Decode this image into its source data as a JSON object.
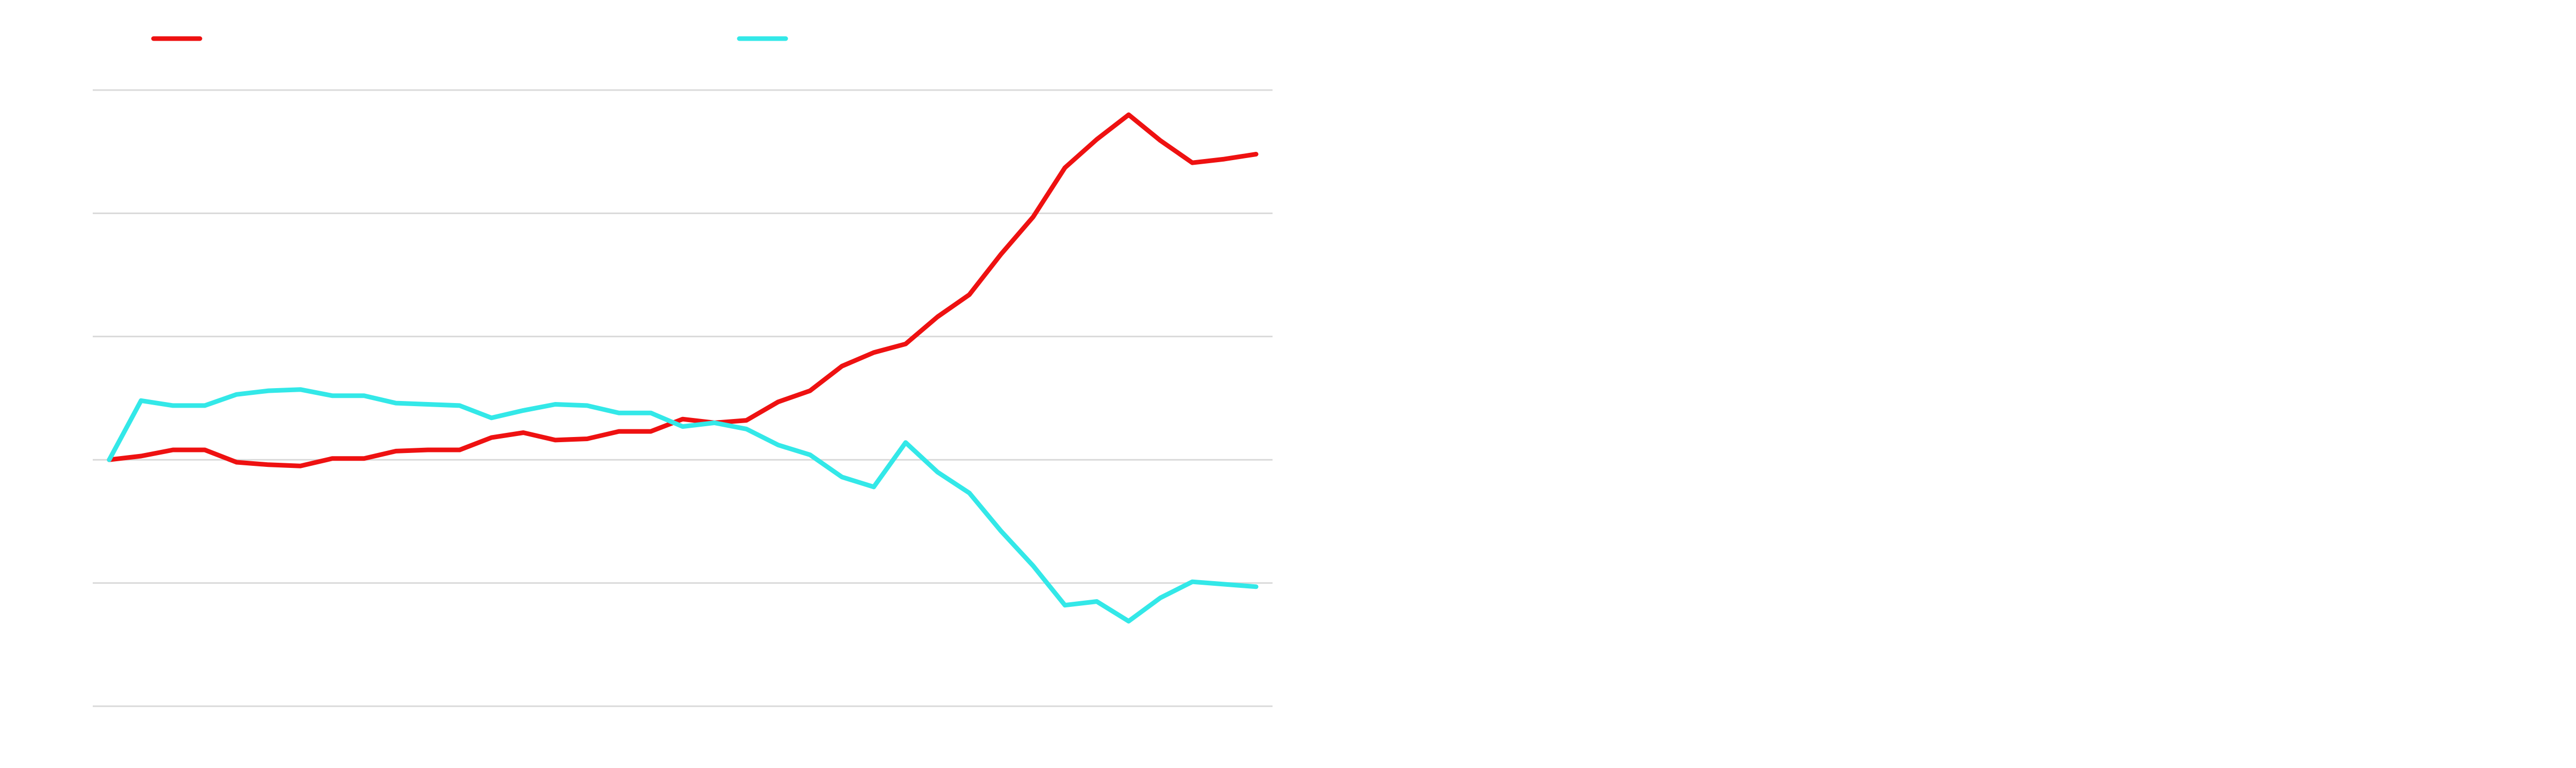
{
  "chart_data": {
    "type": "line",
    "title": "",
    "xlabel": "",
    "ylabel": "",
    "x": [
      0,
      1,
      2,
      3,
      4,
      5,
      6,
      7,
      8,
      9,
      10,
      11,
      12,
      13,
      14,
      15,
      16,
      17,
      18,
      19,
      20,
      21,
      22,
      23,
      24,
      25,
      26,
      27,
      28,
      29,
      30,
      31,
      32,
      33,
      34,
      35,
      36
    ],
    "ylim": [
      -2,
      3
    ],
    "grid": true,
    "legend": "top",
    "series": [
      {
        "color": "#ee1111",
        "values": [
          0.0,
          0.03,
          0.08,
          0.08,
          -0.02,
          -0.04,
          -0.05,
          0.01,
          0.01,
          0.07,
          0.08,
          0.08,
          0.18,
          0.22,
          0.16,
          0.17,
          0.23,
          0.23,
          0.33,
          0.3,
          0.32,
          0.47,
          0.56,
          0.76,
          0.87,
          0.94,
          1.16,
          1.34,
          1.67,
          1.97,
          2.37,
          2.6,
          2.8,
          2.59,
          2.41,
          2.44,
          2.48
        ]
      },
      {
        "color": "#33e8e8",
        "values": [
          0.0,
          0.48,
          0.44,
          0.44,
          0.53,
          0.56,
          0.57,
          0.52,
          0.52,
          0.46,
          0.45,
          0.44,
          0.34,
          0.4,
          0.45,
          0.44,
          0.38,
          0.38,
          0.27,
          0.3,
          0.25,
          0.12,
          0.04,
          -0.14,
          -0.22,
          0.14,
          -0.1,
          -0.27,
          -0.58,
          -0.86,
          -1.18,
          -1.15,
          -1.31,
          -1.12,
          -0.99,
          -1.01,
          -1.03
        ]
      }
    ]
  }
}
